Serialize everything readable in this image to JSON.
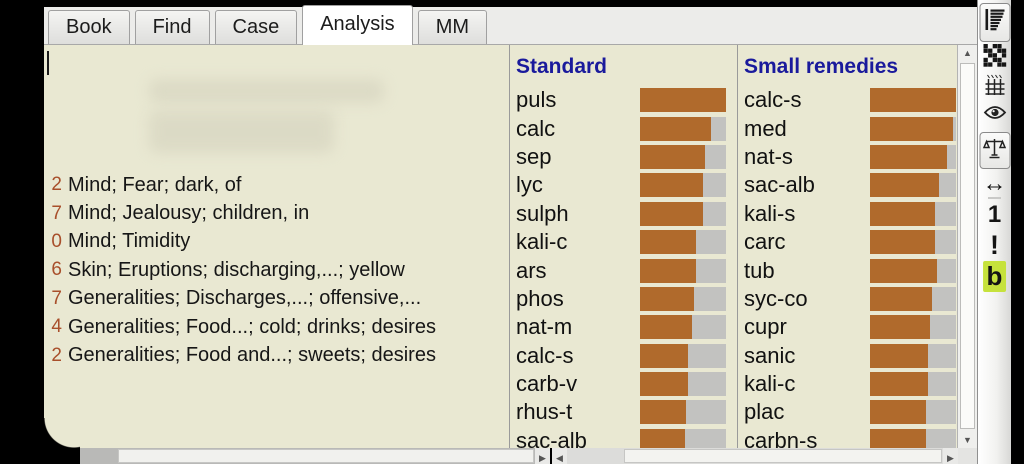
{
  "window": {
    "tabs": [
      {
        "label": "Book"
      },
      {
        "label": "Find"
      },
      {
        "label": "Case"
      },
      {
        "label": "Analysis",
        "active": true
      },
      {
        "label": "MM"
      }
    ]
  },
  "analysis": {
    "rubrics": [
      {
        "count": "2",
        "text": "Mind; Fear; dark, of"
      },
      {
        "count": "7",
        "text": "Mind; Jealousy; children, in"
      },
      {
        "count": "0",
        "text": "Mind; Timidity"
      },
      {
        "count": "6",
        "text": "Skin; Eruptions; discharging,...; yellow"
      },
      {
        "count": "7",
        "text": "Generalities; Discharges,...; offensive,..."
      },
      {
        "count": "4",
        "text": "Generalities; Food...; cold; drinks; desires"
      },
      {
        "count": "2",
        "text": "Generalities; Food and...; sweets; desires"
      }
    ],
    "chart_data": [
      {
        "type": "bar",
        "title": "Standard",
        "categories": [
          "puls",
          "calc",
          "sep",
          "lyc",
          "sulph",
          "kali-c",
          "ars",
          "phos",
          "nat-m",
          "calc-s",
          "carb-v",
          "rhus-t",
          "sac-alb"
        ],
        "values": [
          100,
          83,
          75,
          73,
          73,
          65,
          65,
          63,
          60,
          56,
          56,
          54,
          52
        ],
        "ylim": [
          0,
          100
        ]
      },
      {
        "type": "bar",
        "title": "Small remedies",
        "categories": [
          "calc-s",
          "med",
          "nat-s",
          "sac-alb",
          "kali-s",
          "carc",
          "tub",
          "syc-co",
          "cupr",
          "sanic",
          "kali-c",
          "plac",
          "carbn-s"
        ],
        "values": [
          100,
          96,
          90,
          80,
          76,
          76,
          78,
          72,
          70,
          67,
          67,
          65,
          65
        ],
        "ylim": [
          0,
          100
        ]
      }
    ],
    "columns": [
      {
        "title": "Standard",
        "remedies": [
          {
            "name": "puls",
            "pct": 100
          },
          {
            "name": "calc",
            "pct": 83
          },
          {
            "name": "sep",
            "pct": 75
          },
          {
            "name": "lyc",
            "pct": 73
          },
          {
            "name": "sulph",
            "pct": 73
          },
          {
            "name": "kali-c",
            "pct": 65
          },
          {
            "name": "ars",
            "pct": 65
          },
          {
            "name": "phos",
            "pct": 63
          },
          {
            "name": "nat-m",
            "pct": 60
          },
          {
            "name": "calc-s",
            "pct": 56
          },
          {
            "name": "carb-v",
            "pct": 56
          },
          {
            "name": "rhus-t",
            "pct": 54
          },
          {
            "name": "sac-alb",
            "pct": 52
          }
        ]
      },
      {
        "title": "Small remedies",
        "remedies": [
          {
            "name": "calc-s",
            "pct": 100
          },
          {
            "name": "med",
            "pct": 96
          },
          {
            "name": "nat-s",
            "pct": 90
          },
          {
            "name": "sac-alb",
            "pct": 80
          },
          {
            "name": "kali-s",
            "pct": 76
          },
          {
            "name": "carc",
            "pct": 76
          },
          {
            "name": "tub",
            "pct": 78
          },
          {
            "name": "syc-co",
            "pct": 72
          },
          {
            "name": "cupr",
            "pct": 70
          },
          {
            "name": "sanic",
            "pct": 67
          },
          {
            "name": "kali-c",
            "pct": 67
          },
          {
            "name": "plac",
            "pct": 65
          },
          {
            "name": "carbn-s",
            "pct": 65
          }
        ]
      }
    ]
  },
  "toolbar": {
    "resize_arrow": "↔",
    "one_label": "1",
    "exclamation_label": "!",
    "b_label": "b"
  },
  "scrollbars": {
    "up": "▲",
    "down": "▼",
    "left": "◀",
    "right": "▶"
  },
  "colors": {
    "bar_fill": "#b06a2c",
    "bar_track": "#c2c2c0",
    "header_blue": "#1a1a9c",
    "count_red": "#a84f2b",
    "highlight": "#c6e23c"
  }
}
